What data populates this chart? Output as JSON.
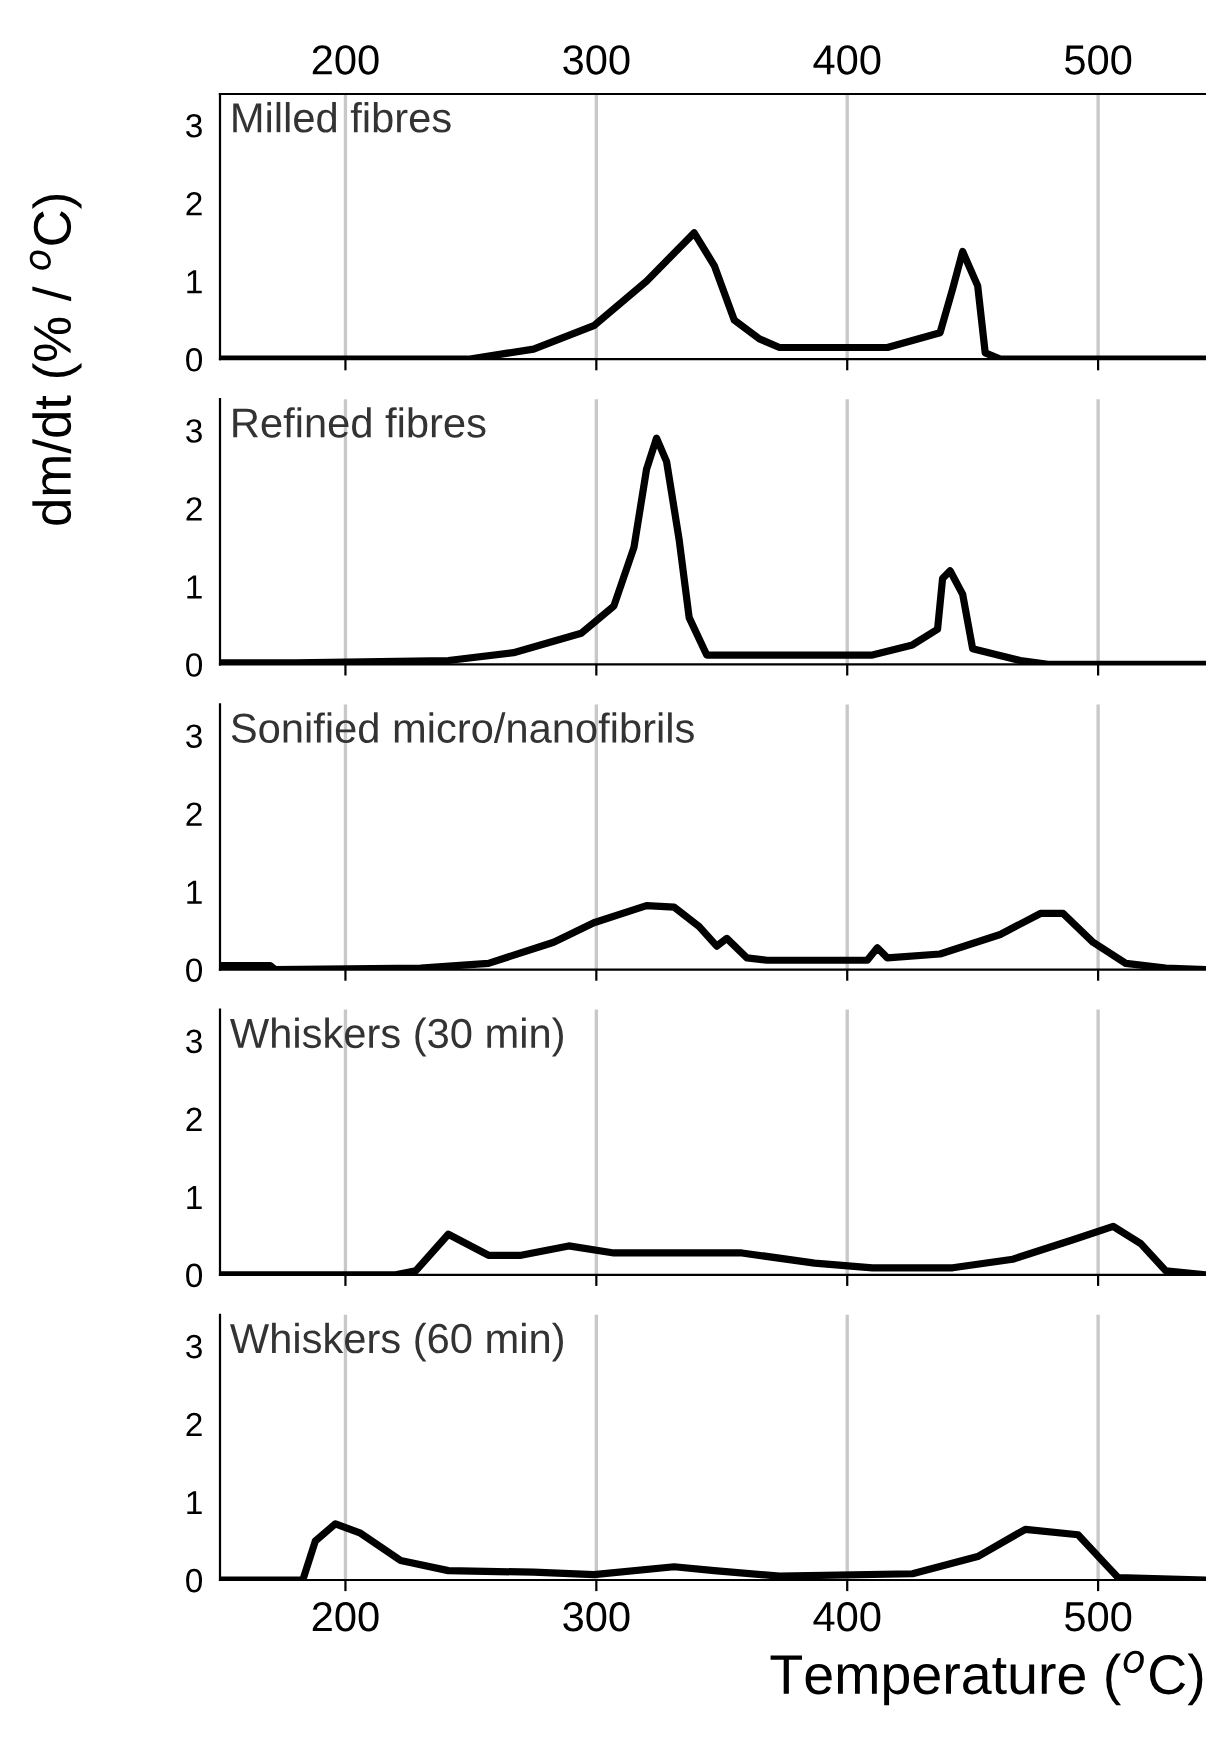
{
  "chart_data": [
    {
      "type": "line",
      "title": "Milled fibres",
      "ylabel": "dm/dt (% / $^{o}$C)",
      "xlim": [
        150,
        543
      ],
      "ylim": [
        0,
        3.4
      ],
      "yticks": [
        0,
        1,
        2,
        3
      ],
      "x2lim": [
        150,
        543
      ],
      "x2ticks": [
        200,
        300,
        400,
        500
      ],
      "tick_labels": "y",
      "grid": "x",
      "line_style": "solid",
      "marker": "none",
      "series": [
        {
          "color": "#000000",
          "x": [
            150,
            249,
            275,
            299,
            320,
            339,
            347,
            355,
            365,
            373,
            416,
            437,
            442,
            446,
            452,
            455,
            461,
            543
          ],
          "values": [
            0,
            0,
            0.13,
            0.43,
            1.0,
            1.62,
            1.2,
            0.5,
            0.26,
            0.15,
            0.15,
            0.34,
            0.9,
            1.38,
            0.94,
            0.08,
            0,
            0
          ]
        }
      ]
    },
    {
      "type": "line",
      "title": "Refined fibres",
      "xlim": [
        150,
        543
      ],
      "ylim": [
        0,
        3.4
      ],
      "yticks": [
        0,
        1,
        2,
        3
      ],
      "tick_labels": "y",
      "grid": "x",
      "line_style": "solid",
      "marker": "none",
      "series": [
        {
          "color": "#000000",
          "x": [
            151,
            180,
            241,
            267,
            294,
            307,
            315,
            320,
            324,
            328,
            333,
            337,
            344,
            410,
            426,
            436,
            438,
            441,
            446,
            450,
            469,
            480,
            543
          ],
          "values": [
            0.02,
            0.02,
            0.05,
            0.15,
            0.4,
            0.75,
            1.5,
            2.5,
            2.9,
            2.6,
            1.6,
            0.6,
            0.12,
            0.12,
            0.25,
            0.45,
            1.1,
            1.2,
            0.9,
            0.2,
            0.05,
            0,
            0
          ]
        }
      ]
    },
    {
      "type": "line",
      "title": "Sonified micro/nanofibrils",
      "xlim": [
        150,
        543
      ],
      "ylim": [
        0,
        3.4
      ],
      "yticks": [
        0,
        1,
        2,
        3
      ],
      "tick_labels": "y",
      "grid": "x",
      "line_style": "solid",
      "marker": "none",
      "series": [
        {
          "color": "#000000",
          "x": [
            151,
            170,
            172,
            230,
            257,
            283,
            299,
            320,
            331,
            341,
            348,
            352,
            360,
            368,
            408,
            412,
            416,
            437,
            461,
            477,
            486,
            498,
            511,
            527,
            543
          ],
          "values": [
            0.05,
            0.05,
            0,
            0.02,
            0.08,
            0.35,
            0.6,
            0.82,
            0.8,
            0.55,
            0.3,
            0.4,
            0.15,
            0.12,
            0.12,
            0.28,
            0.15,
            0.2,
            0.45,
            0.72,
            0.72,
            0.35,
            0.08,
            0.02,
            0
          ]
        }
      ]
    },
    {
      "type": "line",
      "title": "Whiskers (30 min)",
      "xlim": [
        150,
        543
      ],
      "ylim": [
        0,
        3.4
      ],
      "yticks": [
        0,
        1,
        2,
        3
      ],
      "tick_labels": "y",
      "grid": "x",
      "line_style": "solid",
      "marker": "none",
      "series": [
        {
          "color": "#000000",
          "x": [
            151,
            220,
            228,
            241,
            257,
            270,
            289,
            307,
            358,
            387,
            410,
            442,
            466,
            490,
            506,
            517,
            527,
            543
          ],
          "values": [
            0,
            0,
            0.05,
            0.52,
            0.25,
            0.25,
            0.37,
            0.28,
            0.28,
            0.15,
            0.09,
            0.09,
            0.2,
            0.45,
            0.62,
            0.4,
            0.05,
            0
          ]
        }
      ]
    },
    {
      "type": "line",
      "title": "Whiskers (60 min)",
      "xlabel": "Temperature ($^{o}$C)",
      "xlim": [
        150,
        543
      ],
      "xticks": [
        200,
        300,
        400,
        500
      ],
      "ylim": [
        0,
        3.4
      ],
      "yticks": [
        0,
        1,
        2,
        3
      ],
      "grid": "x",
      "line_style": "solid",
      "marker": "none",
      "series": [
        {
          "color": "#000000",
          "x": [
            151,
            183,
            188,
            196,
            206,
            222,
            241,
            275,
            299,
            331,
            347,
            373,
            426,
            452,
            471,
            492,
            503,
            508,
            543
          ],
          "values": [
            0,
            0,
            0.5,
            0.72,
            0.6,
            0.25,
            0.12,
            0.1,
            0.07,
            0.17,
            0.12,
            0.05,
            0.08,
            0.3,
            0.65,
            0.58,
            0.2,
            0.03,
            0
          ]
        }
      ]
    }
  ]
}
